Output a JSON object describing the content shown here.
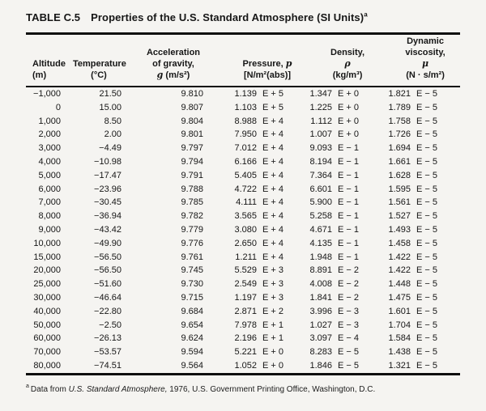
{
  "title": {
    "label": "TABLE C.5",
    "text": "Properties of the U.S. Standard Atmosphere (SI Units)",
    "footnote_marker": "a"
  },
  "header": {
    "altitude": {
      "line1": "Altitude",
      "line2": "(m)"
    },
    "temperature": {
      "line1": "Temperature",
      "line2": "(°C)"
    },
    "gravity": {
      "line1": "Acceleration",
      "line2": "of gravity,",
      "symbol": "g",
      "unit": "(m/s²)"
    },
    "pressure": {
      "line1": "Pressure,",
      "symbol": "p",
      "unit": "[N/m²(abs)]"
    },
    "density": {
      "line1": "Density,",
      "symbol": "ρ",
      "unit": "(kg/m³)"
    },
    "viscosity": {
      "line1": "Dynamic",
      "line2": "viscosity,",
      "symbol": "μ",
      "unit": "(N · s/m²)"
    }
  },
  "table": {
    "column_ids": [
      "altitude-value",
      "temperature-value",
      "gravity-value",
      "pressure-mantissa",
      "pressure-exponent",
      "density-mantissa",
      "density-exponent",
      "viscosity-mantissa",
      "viscosity-exponent"
    ],
    "rows": [
      [
        "−1,000",
        "21.50",
        "9.810",
        "1.139",
        "E + 5",
        "1.347",
        "E + 0",
        "1.821",
        "E − 5"
      ],
      [
        "0",
        "15.00",
        "9.807",
        "1.103",
        "E + 5",
        "1.225",
        "E + 0",
        "1.789",
        "E − 5"
      ],
      [
        "1,000",
        "8.50",
        "9.804",
        "8.988",
        "E + 4",
        "1.112",
        "E + 0",
        "1.758",
        "E − 5"
      ],
      [
        "2,000",
        "2.00",
        "9.801",
        "7.950",
        "E + 4",
        "1.007",
        "E + 0",
        "1.726",
        "E − 5"
      ],
      [
        "3,000",
        "−4.49",
        "9.797",
        "7.012",
        "E + 4",
        "9.093",
        "E − 1",
        "1.694",
        "E − 5"
      ],
      [
        "4,000",
        "−10.98",
        "9.794",
        "6.166",
        "E + 4",
        "8.194",
        "E − 1",
        "1.661",
        "E − 5"
      ],
      [
        "5,000",
        "−17.47",
        "9.791",
        "5.405",
        "E + 4",
        "7.364",
        "E − 1",
        "1.628",
        "E − 5"
      ],
      [
        "6,000",
        "−23.96",
        "9.788",
        "4.722",
        "E + 4",
        "6.601",
        "E − 1",
        "1.595",
        "E − 5"
      ],
      [
        "7,000",
        "−30.45",
        "9.785",
        "4.111",
        "E + 4",
        "5.900",
        "E − 1",
        "1.561",
        "E − 5"
      ],
      [
        "8,000",
        "−36.94",
        "9.782",
        "3.565",
        "E + 4",
        "5.258",
        "E − 1",
        "1.527",
        "E − 5"
      ],
      [
        "9,000",
        "−43.42",
        "9.779",
        "3.080",
        "E + 4",
        "4.671",
        "E − 1",
        "1.493",
        "E − 5"
      ],
      [
        "10,000",
        "−49.90",
        "9.776",
        "2.650",
        "E + 4",
        "4.135",
        "E − 1",
        "1.458",
        "E − 5"
      ],
      [
        "15,000",
        "−56.50",
        "9.761",
        "1.211",
        "E + 4",
        "1.948",
        "E − 1",
        "1.422",
        "E − 5"
      ],
      [
        "20,000",
        "−56.50",
        "9.745",
        "5.529",
        "E + 3",
        "8.891",
        "E − 2",
        "1.422",
        "E − 5"
      ],
      [
        "25,000",
        "−51.60",
        "9.730",
        "2.549",
        "E + 3",
        "4.008",
        "E − 2",
        "1.448",
        "E − 5"
      ],
      [
        "30,000",
        "−46.64",
        "9.715",
        "1.197",
        "E + 3",
        "1.841",
        "E − 2",
        "1.475",
        "E − 5"
      ],
      [
        "40,000",
        "−22.80",
        "9.684",
        "2.871",
        "E + 2",
        "3.996",
        "E − 3",
        "1.601",
        "E − 5"
      ],
      [
        "50,000",
        "−2.50",
        "9.654",
        "7.978",
        "E + 1",
        "1.027",
        "E − 3",
        "1.704",
        "E − 5"
      ],
      [
        "60,000",
        "−26.13",
        "9.624",
        "2.196",
        "E + 1",
        "3.097",
        "E − 4",
        "1.584",
        "E − 5"
      ],
      [
        "70,000",
        "−53.57",
        "9.594",
        "5.221",
        "E + 0",
        "8.283",
        "E − 5",
        "1.438",
        "E − 5"
      ],
      [
        "80,000",
        "−74.51",
        "9.564",
        "1.052",
        "E + 0",
        "1.846",
        "E − 5",
        "1.321",
        "E − 5"
      ]
    ]
  },
  "footnote": {
    "marker": "a",
    "pre": "Data from ",
    "italic": "U.S. Standard Atmosphere,",
    "post": " 1976, U.S. Government Printing Office, Washington, D.C."
  }
}
